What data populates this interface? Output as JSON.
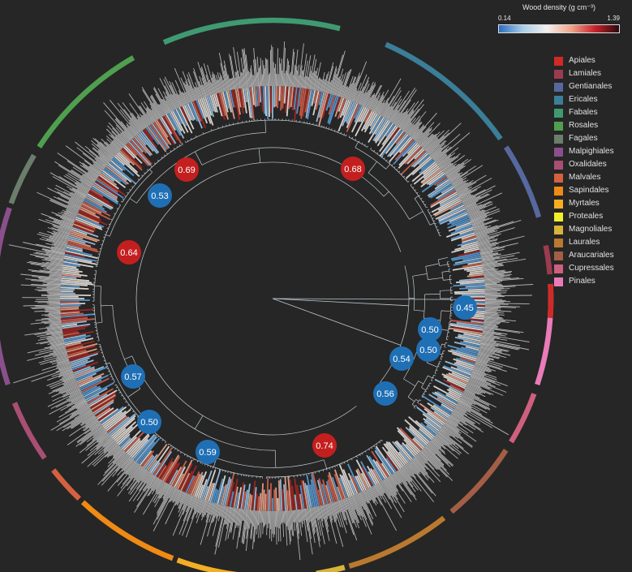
{
  "colorbar": {
    "title": "Wood density (g cm⁻³)",
    "min": "0.14",
    "max": "1.39",
    "colors": [
      "#2a6cc0",
      "#a9cde8",
      "#f3efec",
      "#f0a58a",
      "#c8222c",
      "#2a0a0c"
    ]
  },
  "legend": [
    {
      "label": "Apiales",
      "color": "#d12a26"
    },
    {
      "label": "Lamiales",
      "color": "#9c3b4f"
    },
    {
      "label": "Gentianales",
      "color": "#56689e"
    },
    {
      "label": "Ericales",
      "color": "#3b7e98"
    },
    {
      "label": "Fabales",
      "color": "#3f9a72"
    },
    {
      "label": "Rosales",
      "color": "#4f9f4f"
    },
    {
      "label": "Fagales",
      "color": "#6b7d6b"
    },
    {
      "label": "Malpighiales",
      "color": "#8a4f8c"
    },
    {
      "label": "Oxalidales",
      "color": "#a84f73"
    },
    {
      "label": "Malvales",
      "color": "#d5613e"
    },
    {
      "label": "Sapindales",
      "color": "#ef8a14"
    },
    {
      "label": "Myrtales",
      "color": "#f4ad24"
    },
    {
      "label": "Proteales",
      "color": "#f2ee2a"
    },
    {
      "label": "Magnoliales",
      "color": "#d8b43a"
    },
    {
      "label": "Laurales",
      "color": "#b9792f"
    },
    {
      "label": "Araucariales",
      "color": "#a35e45"
    },
    {
      "label": "Cupressales",
      "color": "#cf5f7e"
    },
    {
      "label": "Pinales",
      "color": "#e97cb8"
    }
  ],
  "nodes": [
    {
      "label": "0.69",
      "color": "#c41f1f"
    },
    {
      "label": "0.68",
      "color": "#c41f1f"
    },
    {
      "label": "0.53",
      "color": "#1f6fb5"
    },
    {
      "label": "0.64",
      "color": "#c41f1f"
    },
    {
      "label": "0.45",
      "color": "#1f6fb5"
    },
    {
      "label": "0.50",
      "color": "#1f6fb5"
    },
    {
      "label": "0.50",
      "color": "#1f6fb5"
    },
    {
      "label": "0.54",
      "color": "#1f6fb5"
    },
    {
      "label": "0.57",
      "color": "#1f6fb5"
    },
    {
      "label": "0.56",
      "color": "#1f6fb5"
    },
    {
      "label": "0.50",
      "color": "#1f6fb5"
    },
    {
      "label": "0.59",
      "color": "#1f6fb5"
    },
    {
      "label": "0.74",
      "color": "#c41f1f"
    }
  ],
  "order_ring": [
    "Pinales",
    "Cupressales",
    "Araucariales",
    "Laurales",
    "Magnoliales",
    "Proteales",
    "Myrtales",
    "Sapindales",
    "Malvales",
    "Oxalidales",
    "Malpighiales",
    "Fagales",
    "Rosales",
    "Fabales",
    "Ericales",
    "Gentianales",
    "Lamiales",
    "Apiales"
  ],
  "tree": {
    "branch_color": "#bfc9cf",
    "background": "#262626",
    "spike_color": "#b4b4b4"
  }
}
